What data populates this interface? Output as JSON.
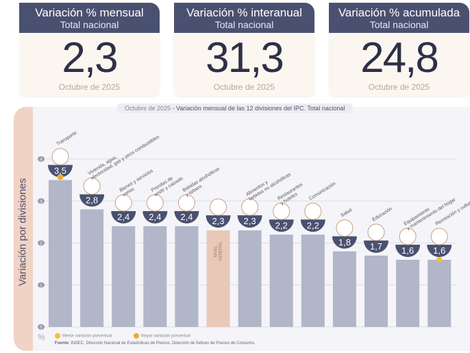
{
  "cards": [
    {
      "title": "Variación % mensual",
      "subtitle": "Total nacional",
      "value": "2,3",
      "date": "Octubre de 2025"
    },
    {
      "title": "Variación % interanual",
      "subtitle": "Total nacional",
      "value": "31,3",
      "date": "Octubre de 2025"
    },
    {
      "title": "Variación % acumulada",
      "subtitle": "Total nacional",
      "value": "24,8",
      "date": "Octubre de 2025"
    }
  ],
  "colors": {
    "navy": "#4a5170",
    "bar": "#b1b6c8",
    "general": "#e8c9b7",
    "max_dot": "#f0a830",
    "min_dot": "#f2c12e"
  },
  "chart_data": {
    "type": "bar",
    "title_date": "Octubre de 2025",
    "title": " - Variación mensual de las 12 divisiones del IPC. Total nacional",
    "ylabel": "Variación por divisiones",
    "yunit": "%",
    "ylim": [
      0,
      4
    ],
    "yticks": [
      "0",
      "1",
      "2",
      "3",
      "4"
    ],
    "grid": true,
    "categories": [
      "Transporte",
      "Vivienda, agua, electricidad, gas y otros combustibles",
      "Bienes y servicios varios",
      "Prendas de vestir y calzado",
      "Bebidas alcohólicas y tabaco",
      "NIVEL GENERAL",
      "Alimentos y bebidas no alcohólicas",
      "Restaurantes y hoteles",
      "Comunicación",
      "Salud",
      "Educación",
      "Equipamiento y mantenimiento del hogar",
      "Recreación y cultura"
    ],
    "values": [
      3.5,
      2.8,
      2.4,
      2.4,
      2.4,
      2.3,
      2.3,
      2.2,
      2.2,
      1.8,
      1.7,
      1.6,
      1.6
    ],
    "value_labels": [
      "3,5",
      "2,8",
      "2,4",
      "2,4",
      "2,4",
      "2,3",
      "2,3",
      "2,2",
      "2,2",
      "1,8",
      "1,7",
      "1,6",
      "1,6"
    ],
    "highlight_max": 0,
    "highlight_min": 12,
    "legend": [
      "Menor variación porcentual",
      "Mayor variación porcentual"
    ]
  },
  "source_label": "Fuente:",
  "source": " INDEC, Dirección Nacional de Estadísticas de Precios. Dirección de Índices de Precios de Consumo."
}
